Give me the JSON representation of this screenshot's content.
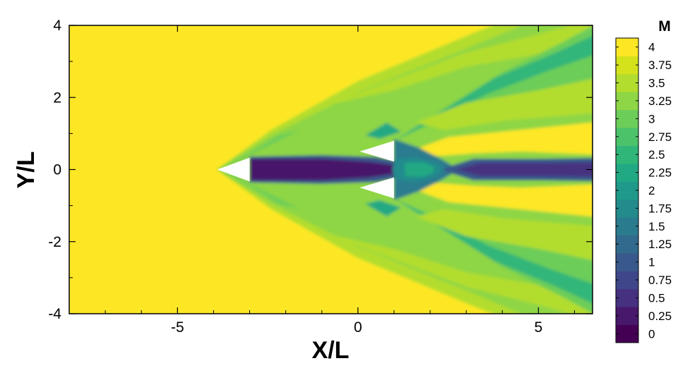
{
  "chart_data": {
    "type": "heatmap",
    "title": "",
    "xlabel": "X/L",
    "ylabel": "Y/L",
    "xlim": [
      -8,
      6.5
    ],
    "ylim": [
      -4,
      4
    ],
    "xticks": [
      -5,
      0,
      5
    ],
    "xtick_labels": [
      "-5",
      "0",
      "5"
    ],
    "yticks": [
      -4,
      -2,
      0,
      2,
      4
    ],
    "ytick_labels": [
      "-4",
      "-2",
      "0",
      "2",
      "4"
    ],
    "colorbar": {
      "title": "M",
      "levels": [
        0,
        0.25,
        0.5,
        0.75,
        1,
        1.25,
        1.5,
        1.75,
        2,
        2.25,
        2.5,
        2.75,
        3,
        3.25,
        3.5,
        3.75,
        4
      ],
      "labels": [
        "0",
        "0.25",
        "0.5",
        "0.75",
        "1",
        "1.25",
        "1.5",
        "1.75",
        "2",
        "2.25",
        "2.5",
        "2.75",
        "3",
        "3.25",
        "3.5",
        "3.75",
        "4"
      ],
      "colors": [
        "#440154",
        "#47186b",
        "#463080",
        "#40468a",
        "#39598c",
        "#326a8d",
        "#2b7b8e",
        "#248b8d",
        "#1f9a8a",
        "#21a983",
        "#30b679",
        "#4cc36a",
        "#6ccd59",
        "#8ed645",
        "#b2dd2e",
        "#d4e21c",
        "#fde725"
      ]
    },
    "field": {
      "freestream_mach": 3.9,
      "bodies": [
        {
          "name": "front cone",
          "apex": [
            -3.9,
            0
          ],
          "base_x": -3.0,
          "base_half_height": 0.33
        },
        {
          "name": "upper rear cone",
          "apex": [
            0.05,
            0.5
          ],
          "base_x": 1.0,
          "base_y_range": [
            0.22,
            0.8
          ]
        },
        {
          "name": "lower rear cone",
          "apex": [
            0.05,
            -0.5
          ],
          "base_x": 1.0,
          "base_y_range": [
            -0.8,
            -0.22
          ]
        }
      ],
      "features": [
        {
          "feature": "bow shock",
          "from": [
            -3.9,
            0
          ],
          "to": [
            6.5,
            4.0
          ],
          "mach_behind": 3.3
        },
        {
          "feature": "wake",
          "x_range": [
            -3.0,
            6.5
          ],
          "mach_core": 0.2
        },
        {
          "feature": "rear shock",
          "from": [
            1.0,
            0.8
          ],
          "to": [
            6.5,
            4.0
          ],
          "mach_behind": 3.0
        },
        {
          "feature": "expansion",
          "y_range": [
            0.4,
            1.3
          ],
          "mach": 4.0
        }
      ]
    }
  }
}
